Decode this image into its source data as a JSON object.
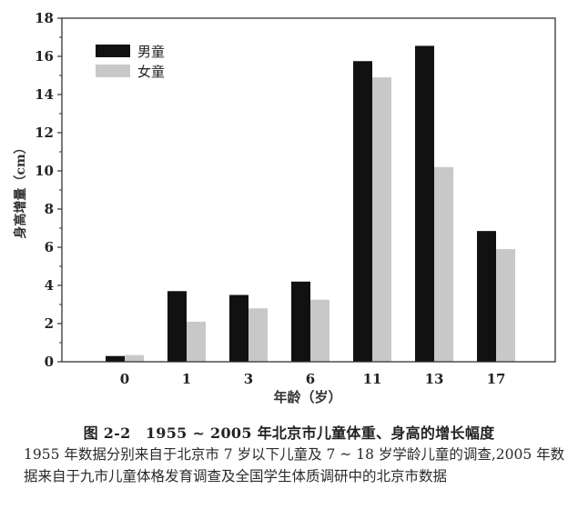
{
  "chart_data": {
    "type": "bar",
    "title": "",
    "xlabel": "年龄（岁）",
    "ylabel": "身高增量（cm）",
    "categories": [
      "0",
      "1",
      "3",
      "6",
      "11",
      "13",
      "17"
    ],
    "series": [
      {
        "name": "男童",
        "color": "#111111",
        "values": [
          0.3,
          3.7,
          3.5,
          4.2,
          15.75,
          16.55,
          6.85
        ]
      },
      {
        "name": "女童",
        "color": "#c8c8c8",
        "values": [
          0.35,
          2.1,
          2.8,
          3.25,
          14.9,
          10.2,
          5.9
        ]
      }
    ],
    "ylim": [
      0,
      18
    ],
    "yticks": [
      0,
      2,
      4,
      6,
      8,
      10,
      12,
      14,
      16,
      18
    ],
    "grid": false,
    "legend_position": "upper-left"
  },
  "caption": {
    "title": "图 2-2　1955 ~ 2005 年北京市儿童体重、身高的增长幅度",
    "note": "1955 年数据分别来自于北京市 7 岁以下儿童及 7 ~ 18 岁学龄儿童的调查,2005 年数据来自于九市儿童体格发育调查及全国学生体质调研中的北京市数据"
  }
}
